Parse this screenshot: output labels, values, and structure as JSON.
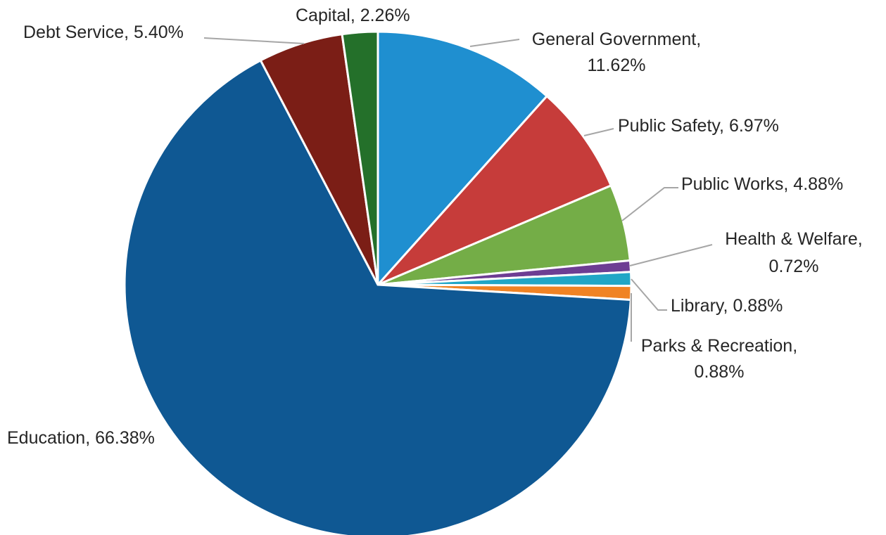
{
  "chart_data": {
    "type": "pie",
    "title": "",
    "categories": [
      "General Government",
      "Public Safety",
      "Public Works",
      "Health & Welfare",
      "Library",
      "Parks & Recreation",
      "Education",
      "Debt Service",
      "Capital"
    ],
    "values": [
      11.62,
      6.97,
      4.88,
      0.72,
      0.88,
      0.88,
      66.38,
      5.4,
      2.26
    ],
    "unit": "%",
    "slices": [
      {
        "label": "General Government",
        "value": 11.62,
        "color": "#1f8fd0",
        "label_lines": [
          "General Government,",
          "11.62%"
        ]
      },
      {
        "label": "Public Safety",
        "value": 6.97,
        "color": "#c63c3a",
        "label_lines": [
          "Public Safety, 6.97%"
        ]
      },
      {
        "label": "Public Works",
        "value": 4.88,
        "color": "#74ad47",
        "label_lines": [
          "Public Works, 4.88%"
        ]
      },
      {
        "label": "Health & Welfare",
        "value": 0.72,
        "color": "#6d3d93",
        "label_lines": [
          "Health & Welfare,",
          "0.72%"
        ]
      },
      {
        "label": "Library",
        "value": 0.88,
        "color": "#21a6c6",
        "label_lines": [
          "Library, 0.88%"
        ]
      },
      {
        "label": "Parks & Recreation",
        "value": 0.88,
        "color": "#f08324",
        "label_lines": [
          "Parks & Recreation,",
          "0.88%"
        ]
      },
      {
        "label": "Education",
        "value": 66.38,
        "color": "#0f5893",
        "label_lines": [
          "Education, 66.38%"
        ]
      },
      {
        "label": "Debt Service",
        "value": 5.4,
        "color": "#7b1e16",
        "label_lines": [
          "Debt Service, 5.40%"
        ]
      },
      {
        "label": "Capital",
        "value": 2.26,
        "color": "#24702a",
        "label_lines": [
          "Capital, 2.26%"
        ]
      }
    ],
    "start_angle": "12 o'clock",
    "direction": "clockwise",
    "legend": "none",
    "data_labels": "outside with leader lines"
  }
}
